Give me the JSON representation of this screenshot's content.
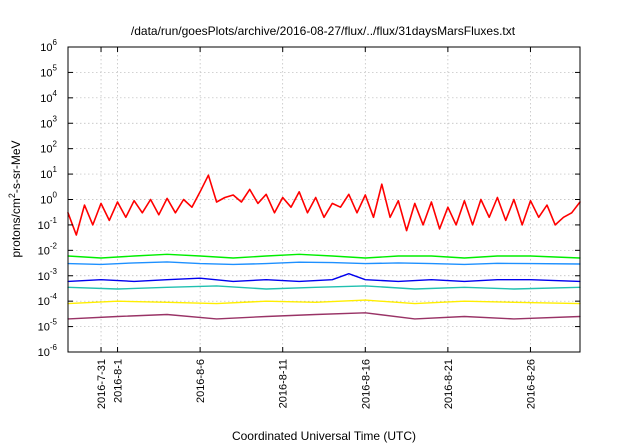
{
  "chart_data": {
    "type": "line",
    "title": "/data/run/goesPlots/archive/2016-08-27/flux/../flux/31daysMarsFluxes.txt",
    "xlabel": "Coordinated Universal Time (UTC)",
    "ylabel_parts": [
      "protons/cm",
      "2",
      "-s-sr-MeV"
    ],
    "yscale": "log",
    "ylim": [
      1e-06,
      1000000.0
    ],
    "xlim": [
      "2016-07-29",
      "2016-08-29"
    ],
    "grid": true,
    "y_ticks": [
      {
        "value": 1e-06,
        "base": "10",
        "exp": "-6"
      },
      {
        "value": 1e-05,
        "base": "10",
        "exp": "-5"
      },
      {
        "value": 0.0001,
        "base": "10",
        "exp": "-4"
      },
      {
        "value": 0.001,
        "base": "10",
        "exp": "-3"
      },
      {
        "value": 0.01,
        "base": "10",
        "exp": "-2"
      },
      {
        "value": 0.1,
        "base": "10",
        "exp": "-1"
      },
      {
        "value": 1,
        "base": "10",
        "exp": "0"
      },
      {
        "value": 10,
        "base": "10",
        "exp": "1"
      },
      {
        "value": 100,
        "base": "10",
        "exp": "2"
      },
      {
        "value": 1000,
        "base": "10",
        "exp": "3"
      },
      {
        "value": 10000,
        "base": "10",
        "exp": "4"
      },
      {
        "value": 100000,
        "base": "10",
        "exp": "5"
      },
      {
        "value": 1000000,
        "base": "10",
        "exp": "6"
      }
    ],
    "x_ticks": [
      {
        "date": "2016-07-31",
        "label": "2016-7-31"
      },
      {
        "date": "2016-08-01",
        "label": "2016-8-1"
      },
      {
        "date": "2016-08-06",
        "label": "2016-8-6"
      },
      {
        "date": "2016-08-11",
        "label": "2016-8-11"
      },
      {
        "date": "2016-08-16",
        "label": "2016-8-16"
      },
      {
        "date": "2016-08-21",
        "label": "2016-8-21"
      },
      {
        "date": "2016-08-26",
        "label": "2016-8-26"
      }
    ],
    "series": [
      {
        "color": "#ff0000",
        "x": [
          "2016-07-29",
          "2016-07-29T12:00",
          "2016-07-30",
          "2016-07-30T12:00",
          "2016-07-31",
          "2016-07-31T12:00",
          "2016-08-01",
          "2016-08-01T12:00",
          "2016-08-02",
          "2016-08-02T12:00",
          "2016-08-03",
          "2016-08-03T12:00",
          "2016-08-04",
          "2016-08-04T12:00",
          "2016-08-05",
          "2016-08-05T12:00",
          "2016-08-06",
          "2016-08-06T12:00",
          "2016-08-07",
          "2016-08-07T12:00",
          "2016-08-08",
          "2016-08-08T12:00",
          "2016-08-09",
          "2016-08-09T12:00",
          "2016-08-10",
          "2016-08-10T12:00",
          "2016-08-11",
          "2016-08-11T12:00",
          "2016-08-12",
          "2016-08-12T12:00",
          "2016-08-13",
          "2016-08-13T12:00",
          "2016-08-14",
          "2016-08-14T12:00",
          "2016-08-15",
          "2016-08-15T12:00",
          "2016-08-16",
          "2016-08-16T12:00",
          "2016-08-17",
          "2016-08-17T12:00",
          "2016-08-18",
          "2016-08-18T12:00",
          "2016-08-19",
          "2016-08-19T12:00",
          "2016-08-20",
          "2016-08-20T12:00",
          "2016-08-21",
          "2016-08-21T12:00",
          "2016-08-22",
          "2016-08-22T12:00",
          "2016-08-23",
          "2016-08-23T12:00",
          "2016-08-24",
          "2016-08-24T12:00",
          "2016-08-25",
          "2016-08-25T12:00",
          "2016-08-26",
          "2016-08-26T12:00",
          "2016-08-27",
          "2016-08-27T12:00",
          "2016-08-28",
          "2016-08-28T12:00",
          "2016-08-29"
        ],
        "y": [
          0.3,
          0.04,
          0.6,
          0.1,
          0.7,
          0.15,
          0.8,
          0.2,
          0.9,
          0.3,
          1.0,
          0.25,
          1.1,
          0.3,
          1.0,
          0.5,
          2.0,
          9.0,
          0.8,
          1.2,
          1.5,
          0.8,
          2.5,
          0.7,
          1.6,
          0.3,
          1.2,
          0.5,
          2.0,
          0.3,
          1.2,
          0.2,
          0.7,
          0.5,
          1.6,
          0.3,
          1.5,
          0.2,
          4.0,
          0.2,
          0.9,
          0.06,
          0.7,
          0.1,
          0.8,
          0.07,
          0.5,
          0.1,
          0.9,
          0.1,
          1.0,
          0.2,
          1.2,
          0.15,
          1.0,
          0.1,
          0.9,
          0.2,
          0.6,
          0.1,
          0.2,
          0.3,
          0.8
        ]
      },
      {
        "color": "#00ee00",
        "x": [
          "2016-07-29",
          "2016-07-31",
          "2016-08-02",
          "2016-08-04",
          "2016-08-06",
          "2016-08-08",
          "2016-08-10",
          "2016-08-12",
          "2016-08-14",
          "2016-08-16",
          "2016-08-18",
          "2016-08-20",
          "2016-08-22",
          "2016-08-24",
          "2016-08-26",
          "2016-08-29"
        ],
        "y": [
          0.006,
          0.005,
          0.006,
          0.007,
          0.006,
          0.005,
          0.006,
          0.007,
          0.006,
          0.005,
          0.006,
          0.006,
          0.005,
          0.006,
          0.006,
          0.005
        ]
      },
      {
        "color": "#1e90ff",
        "x": [
          "2016-07-29",
          "2016-07-31",
          "2016-08-02",
          "2016-08-04",
          "2016-08-06",
          "2016-08-08",
          "2016-08-10",
          "2016-08-12",
          "2016-08-14",
          "2016-08-16",
          "2016-08-18",
          "2016-08-20",
          "2016-08-22",
          "2016-08-24",
          "2016-08-26",
          "2016-08-29"
        ],
        "y": [
          0.003,
          0.0028,
          0.0032,
          0.0035,
          0.003,
          0.0028,
          0.003,
          0.0034,
          0.0033,
          0.003,
          0.0032,
          0.003,
          0.0028,
          0.0031,
          0.003,
          0.0029
        ]
      },
      {
        "color": "#0000ee",
        "x": [
          "2016-07-29",
          "2016-07-31",
          "2016-08-02",
          "2016-08-04",
          "2016-08-06",
          "2016-08-08",
          "2016-08-10",
          "2016-08-12",
          "2016-08-14",
          "2016-08-15",
          "2016-08-16",
          "2016-08-18",
          "2016-08-20",
          "2016-08-22",
          "2016-08-24",
          "2016-08-26",
          "2016-08-29"
        ],
        "y": [
          0.0006,
          0.0007,
          0.0006,
          0.0007,
          0.0008,
          0.0006,
          0.0007,
          0.0006,
          0.0007,
          0.0012,
          0.0007,
          0.0006,
          0.0007,
          0.0006,
          0.0007,
          0.0007,
          0.0006
        ]
      },
      {
        "color": "#20c0b0",
        "x": [
          "2016-07-29",
          "2016-08-01",
          "2016-08-04",
          "2016-08-07",
          "2016-08-10",
          "2016-08-13",
          "2016-08-16",
          "2016-08-19",
          "2016-08-22",
          "2016-08-25",
          "2016-08-29"
        ],
        "y": [
          0.00035,
          0.0003,
          0.00035,
          0.0004,
          0.0003,
          0.00035,
          0.0004,
          0.0003,
          0.00035,
          0.0003,
          0.00035
        ]
      },
      {
        "color": "#ffee00",
        "x": [
          "2016-07-29",
          "2016-08-01",
          "2016-08-04",
          "2016-08-07",
          "2016-08-10",
          "2016-08-13",
          "2016-08-16",
          "2016-08-19",
          "2016-08-22",
          "2016-08-25",
          "2016-08-29"
        ],
        "y": [
          8e-05,
          0.0001,
          9e-05,
          8e-05,
          0.0001,
          9e-05,
          0.00011,
          8e-05,
          0.0001,
          9e-05,
          8e-05
        ]
      },
      {
        "color": "#993366",
        "x": [
          "2016-07-29",
          "2016-08-01",
          "2016-08-04",
          "2016-08-07",
          "2016-08-10",
          "2016-08-13",
          "2016-08-16",
          "2016-08-19",
          "2016-08-22",
          "2016-08-25",
          "2016-08-29"
        ],
        "y": [
          2e-05,
          2.5e-05,
          3e-05,
          2e-05,
          2.5e-05,
          3e-05,
          3.5e-05,
          2e-05,
          2.5e-05,
          2e-05,
          2.5e-05
        ]
      }
    ]
  }
}
